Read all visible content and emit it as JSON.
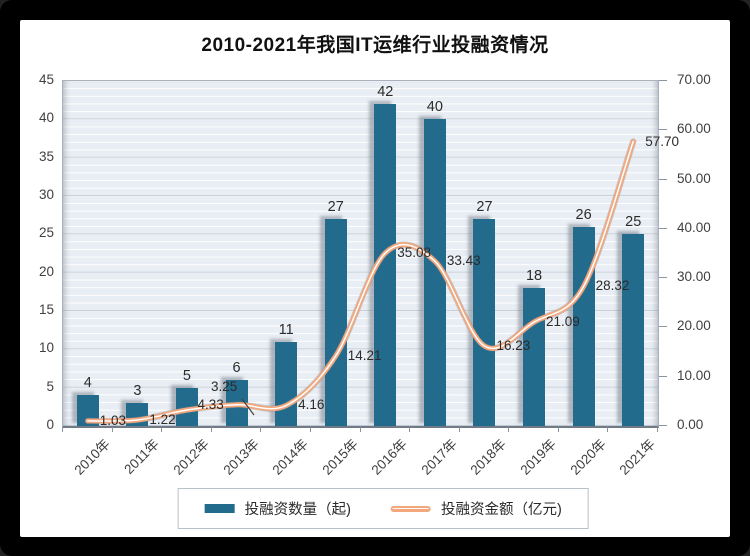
{
  "title": "2010-2021年我国IT运维行业投融资情况",
  "chart_data": {
    "type": "bar+line",
    "categories": [
      "2010年",
      "2011年",
      "2012年",
      "2013年",
      "2014年",
      "2015年",
      "2016年",
      "2017年",
      "2018年",
      "2019年",
      "2020年",
      "2021年"
    ],
    "series": [
      {
        "name": "投融资数量（起)",
        "type": "bar",
        "axis": "left",
        "values": [
          4,
          3,
          5,
          6,
          11,
          27,
          42,
          40,
          27,
          18,
          26,
          25
        ],
        "labels": [
          "4",
          "3",
          "5",
          "6",
          "11",
          "27",
          "42",
          "40",
          "27",
          "18",
          "26",
          "25"
        ]
      },
      {
        "name": "投融资金额（亿元)",
        "type": "line",
        "axis": "right",
        "values": [
          1.03,
          1.22,
          3.25,
          4.33,
          4.16,
          14.21,
          35.08,
          33.43,
          16.23,
          21.09,
          28.32,
          57.7
        ],
        "labels": [
          "1.03",
          "1.22",
          "3.25",
          "4.33",
          "4.16",
          "14.21",
          "35.08",
          "33.43",
          "16.23",
          "21.09",
          "28.32",
          "57.70"
        ]
      }
    ],
    "left_axis": {
      "min": 0,
      "max": 45,
      "step": 5,
      "ticks": [
        "0",
        "5",
        "10",
        "15",
        "20",
        "25",
        "30",
        "35",
        "40",
        "45"
      ]
    },
    "right_axis": {
      "min": 0,
      "max": 70,
      "step": 10,
      "ticks": [
        "0.00",
        "10.00",
        "20.00",
        "30.00",
        "40.00",
        "50.00",
        "60.00",
        "70.00"
      ]
    },
    "legend_position": "bottom",
    "grid": "horizontal-minor-and-major",
    "colors": {
      "bar": "#226b8d",
      "line_outer": "#f2a77c",
      "line_inner": "#ffffff",
      "plot_bg": "#e9eef4",
      "gridline_major": "#c6cfd9",
      "gridline_minor": "#ffffff",
      "axis_text": "#3f3f3f",
      "label_text": "#2b2b2b"
    }
  }
}
